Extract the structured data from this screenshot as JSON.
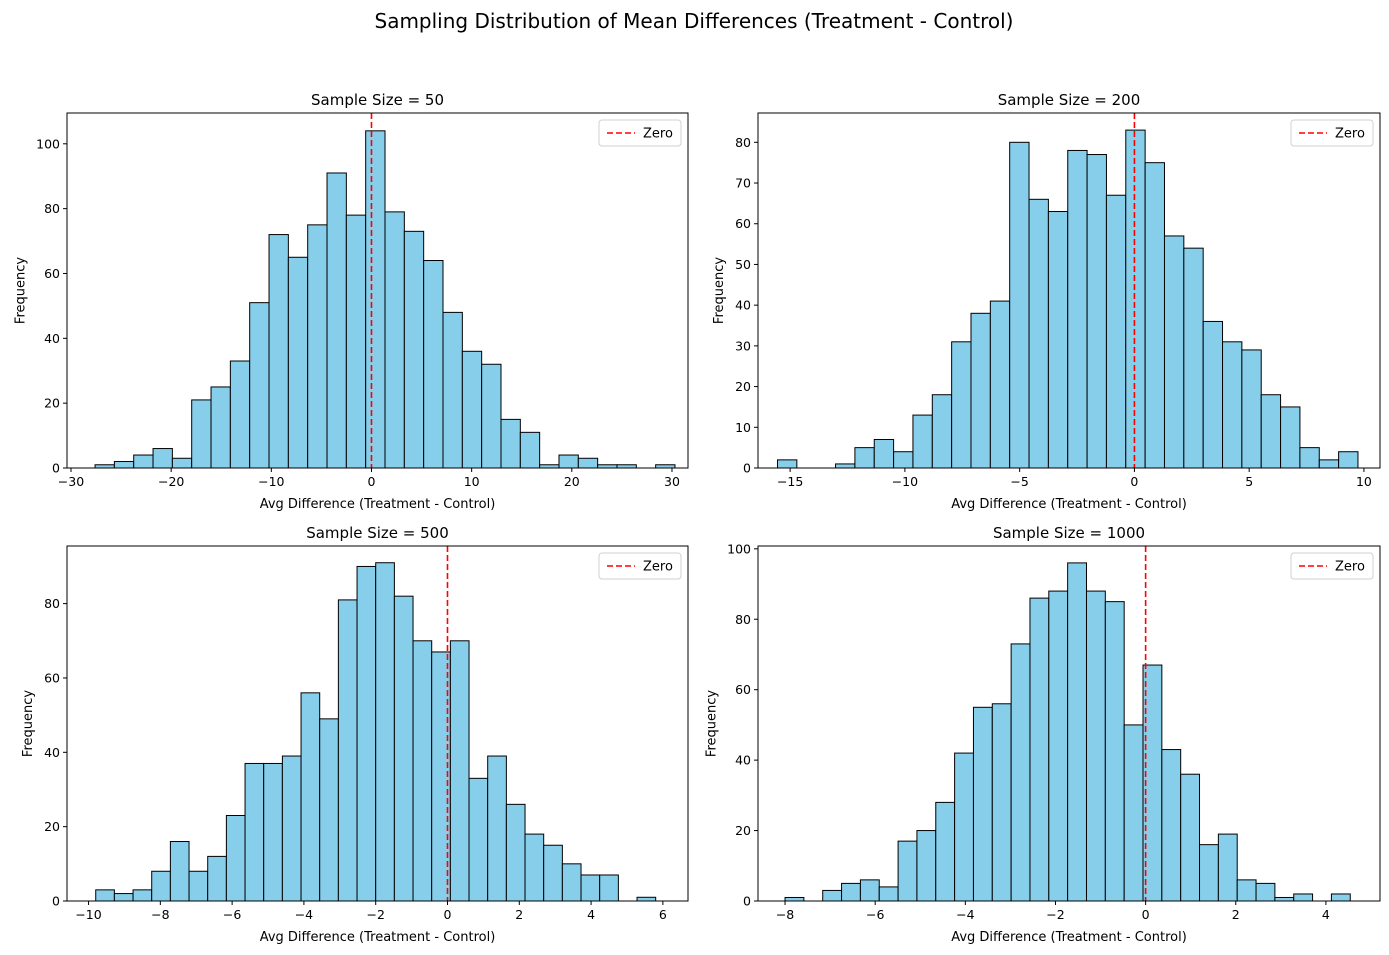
{
  "figure": {
    "title": "Sampling Distribution of Mean Differences (Treatment - Control)"
  },
  "chart_data": [
    {
      "type": "bar",
      "title": "Sample Size = 50",
      "xlabel": "Avg Difference (Treatment - Control)",
      "ylabel": "Frequency",
      "xlim": [
        -30.4,
        31.6
      ],
      "ylim": [
        0,
        109.5
      ],
      "xticks": [
        -30,
        -20,
        -10,
        0,
        10,
        20,
        30
      ],
      "yticks": [
        0,
        20,
        40,
        60,
        80,
        100
      ],
      "bin_start": -27.6,
      "bin_width": 1.93,
      "values": [
        1,
        2,
        4,
        6,
        3,
        21,
        25,
        33,
        51,
        72,
        65,
        75,
        91,
        78,
        104,
        79,
        73,
        64,
        48,
        36,
        32,
        15,
        11,
        1,
        4,
        3,
        1,
        1,
        0,
        1
      ],
      "bar_color": "#87ceeb",
      "edge_color": "#000000",
      "reference_line": {
        "x": 0,
        "color": "#ff0000",
        "label": "Zero"
      },
      "legend": "top-right",
      "grid": false
    },
    {
      "type": "bar",
      "title": "Sample Size = 200",
      "xlabel": "Avg Difference (Treatment - Control)",
      "ylabel": "Frequency",
      "xlim": [
        -16.4,
        10.7
      ],
      "ylim": [
        0,
        87.2
      ],
      "xticks": [
        -15,
        -10,
        -5,
        0,
        5,
        10
      ],
      "yticks": [
        0,
        10,
        20,
        30,
        40,
        50,
        60,
        70,
        80
      ],
      "bin_start": -15.55,
      "bin_width": 0.843,
      "values": [
        2,
        0,
        0,
        1,
        5,
        7,
        4,
        13,
        18,
        31,
        38,
        41,
        80,
        66,
        63,
        78,
        77,
        67,
        83,
        75,
        57,
        54,
        36,
        31,
        29,
        18,
        15,
        5,
        2,
        4
      ],
      "bar_color": "#87ceeb",
      "edge_color": "#000000",
      "reference_line": {
        "x": 0,
        "color": "#ff0000",
        "label": "Zero"
      },
      "legend": "top-right",
      "grid": false
    },
    {
      "type": "bar",
      "title": "Sample Size = 500",
      "xlabel": "Avg Difference (Treatment - Control)",
      "ylabel": "Frequency",
      "xlim": [
        -10.6,
        6.7
      ],
      "ylim": [
        0,
        95.5
      ],
      "xticks": [
        -10,
        -8,
        -6,
        -4,
        -2,
        0,
        2,
        4,
        6
      ],
      "yticks": [
        0,
        20,
        40,
        60,
        80
      ],
      "bin_start": -9.8,
      "bin_width": 0.52,
      "values": [
        3,
        2,
        3,
        8,
        16,
        8,
        12,
        23,
        37,
        37,
        39,
        56,
        49,
        81,
        90,
        91,
        82,
        70,
        67,
        70,
        33,
        39,
        26,
        18,
        15,
        10,
        7,
        7,
        0,
        1
      ],
      "bar_color": "#87ceeb",
      "edge_color": "#000000",
      "reference_line": {
        "x": 0,
        "color": "#ff0000",
        "label": "Zero"
      },
      "legend": "top-right",
      "grid": false
    },
    {
      "type": "bar",
      "title": "Sample Size = 1000",
      "xlabel": "Avg Difference (Treatment - Control)",
      "ylabel": "Frequency",
      "xlim": [
        -8.6,
        5.2
      ],
      "ylim": [
        0,
        100.8
      ],
      "xticks": [
        -8,
        -6,
        -4,
        -2,
        0,
        2,
        4
      ],
      "yticks": [
        0,
        20,
        40,
        60,
        80,
        100
      ],
      "bin_start": -8.0,
      "bin_width": 0.418,
      "values": [
        1,
        0,
        3,
        5,
        6,
        4,
        17,
        20,
        28,
        42,
        55,
        56,
        73,
        86,
        88,
        96,
        88,
        85,
        50,
        67,
        43,
        36,
        16,
        19,
        6,
        5,
        1,
        2,
        0,
        2
      ],
      "bar_color": "#87ceeb",
      "edge_color": "#000000",
      "reference_line": {
        "x": 0,
        "color": "#ff0000",
        "label": "Zero"
      },
      "legend": "top-right",
      "grid": false
    }
  ]
}
